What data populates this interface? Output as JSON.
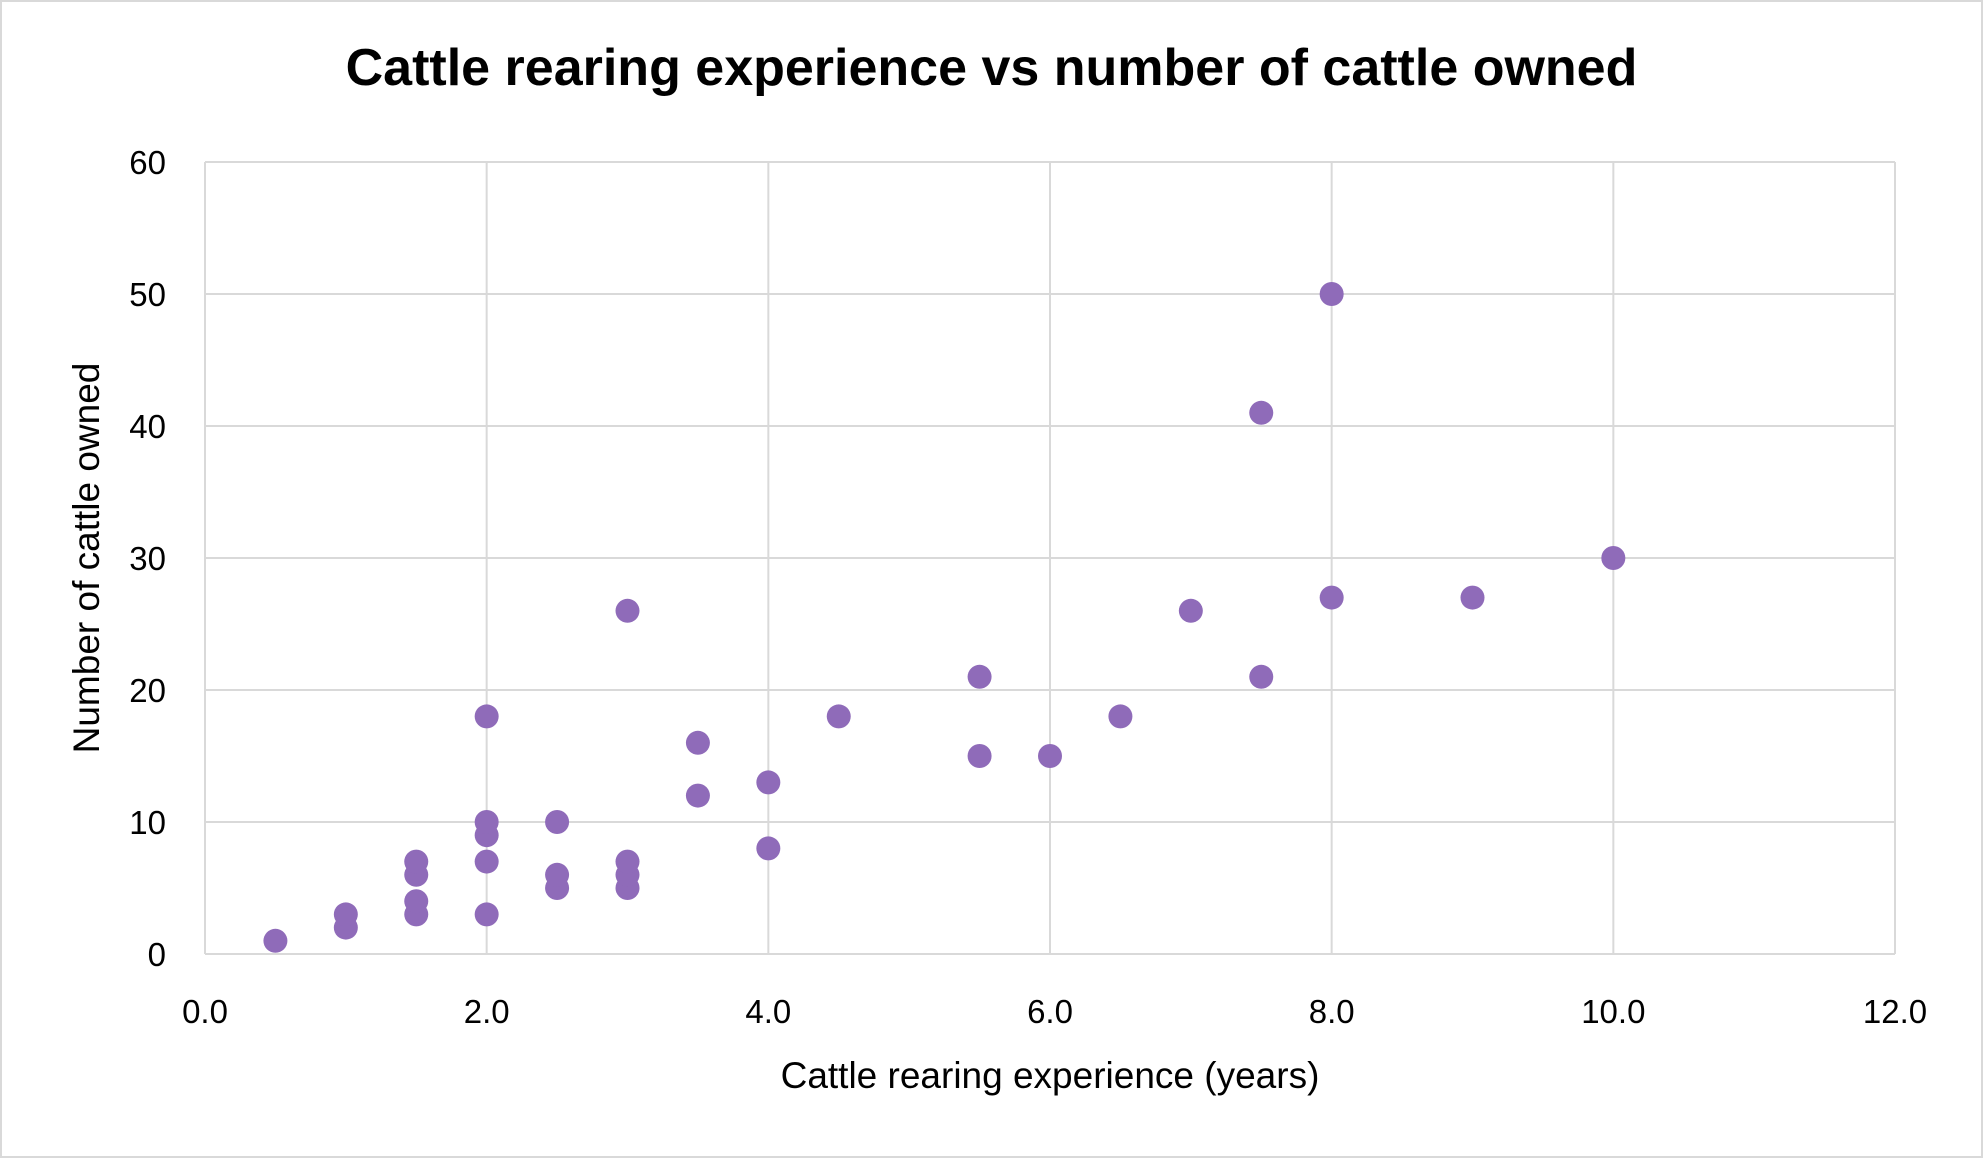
{
  "chart_data": {
    "type": "scatter",
    "title": "Cattle rearing experience vs number of cattle owned",
    "xlabel": "Cattle rearing experience (years)",
    "ylabel": "Number of cattle owned",
    "xlim": [
      0,
      12
    ],
    "ylim": [
      0,
      60
    ],
    "x_ticks": [
      "0.0",
      "2.0",
      "4.0",
      "6.0",
      "8.0",
      "10.0",
      "12.0"
    ],
    "y_ticks": [
      "0",
      "10",
      "20",
      "30",
      "40",
      "50",
      "60"
    ],
    "grid": true,
    "marker_color": "#8f6bb9",
    "points": [
      [
        0.5,
        1
      ],
      [
        1,
        2
      ],
      [
        1,
        3
      ],
      [
        1.5,
        3
      ],
      [
        1.5,
        4
      ],
      [
        1.5,
        6
      ],
      [
        1.5,
        7
      ],
      [
        2,
        3
      ],
      [
        2,
        7
      ],
      [
        2,
        9
      ],
      [
        2,
        10
      ],
      [
        2,
        18
      ],
      [
        2.5,
        5
      ],
      [
        2.5,
        6
      ],
      [
        2.5,
        10
      ],
      [
        3,
        5
      ],
      [
        3,
        6
      ],
      [
        3,
        7
      ],
      [
        3,
        26
      ],
      [
        3.5,
        12
      ],
      [
        3.5,
        16
      ],
      [
        4,
        8
      ],
      [
        4,
        13
      ],
      [
        4.5,
        18
      ],
      [
        5.5,
        15
      ],
      [
        5.5,
        21
      ],
      [
        6,
        15
      ],
      [
        6.5,
        18
      ],
      [
        7,
        26
      ],
      [
        7.5,
        21
      ],
      [
        7.5,
        41
      ],
      [
        8,
        27
      ],
      [
        8,
        50
      ],
      [
        9,
        27
      ],
      [
        10,
        30
      ]
    ]
  }
}
